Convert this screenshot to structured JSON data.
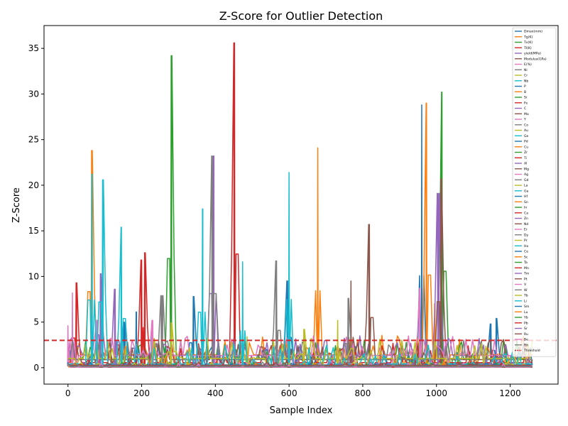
{
  "chart_data": {
    "type": "line",
    "title": "Z-Score for Outlier Detection",
    "xlabel": "Sample Index",
    "ylabel": "Z-Score",
    "xlim": [
      -65,
      1330
    ],
    "ylim": [
      -1.8,
      37.5
    ],
    "xticks": [
      0,
      200,
      400,
      600,
      800,
      1000,
      1200
    ],
    "yticks": [
      0,
      5,
      10,
      15,
      20,
      25,
      30,
      35
    ],
    "grid": false,
    "legend_position": "top-right",
    "threshold": {
      "name": "Threshold",
      "value": 3,
      "color": "#d62728"
    },
    "series": [
      {
        "name": "Dmax(mm)",
        "color": "#1f77b4",
        "peaks": [
          [
            153,
            5
          ],
          [
            185,
            6.1
          ],
          [
            228,
            4.1
          ],
          [
            340,
            7.8
          ],
          [
            596,
            9.5
          ],
          [
            960,
            28.8
          ],
          [
            1148,
            4.8
          ],
          [
            1162,
            5.4
          ]
        ]
      },
      {
        "name": "Tg(K)",
        "color": "#ff7f0e",
        "peaks": [
          [
            64,
            23.8
          ],
          [
            678,
            24.1
          ],
          [
            973,
            29.0
          ],
          [
            995,
            7.0
          ],
          [
            1060,
            2.5
          ]
        ]
      },
      {
        "name": "Tx(K)",
        "color": "#2ca02c",
        "peaks": [
          [
            280,
            34.2
          ],
          [
            1015,
            30.2
          ],
          [
            1190,
            2.0
          ]
        ]
      },
      {
        "name": "Tl(K)",
        "color": "#d62728",
        "peaks": [
          [
            22,
            9.3
          ],
          [
            200,
            11.8
          ],
          [
            208,
            12.6
          ],
          [
            452,
            35.6
          ]
        ]
      },
      {
        "name": "yield(MPa)",
        "color": "#9467bd",
        "peaks": [
          [
            88,
            10.3
          ],
          [
            128,
            8.6
          ],
          [
            395,
            23.2
          ],
          [
            1005,
            19.1
          ]
        ]
      },
      {
        "name": "Modulus(GPa)",
        "color": "#8c564b",
        "peaks": [
          [
            768,
            9.5
          ],
          [
            818,
            15.7
          ],
          [
            1012,
            20.7
          ]
        ]
      },
      {
        "name": "E(%)",
        "color": "#e377c2",
        "peaks": [
          [
            0,
            4.6
          ],
          [
            12,
            8.2
          ],
          [
            80,
            5.2
          ],
          [
            230,
            5.2
          ],
          [
            955,
            8.7
          ]
        ]
      },
      {
        "name": "Ni",
        "color": "#7f7f7f",
        "peaks": [
          [
            255,
            7.9
          ],
          [
            392,
            23.2
          ],
          [
            566,
            11.7
          ],
          [
            760,
            7.6
          ]
        ]
      },
      {
        "name": "Cr",
        "color": "#bcbd22",
        "peaks": [
          [
            280,
            4.9
          ],
          [
            486,
            3.4
          ],
          [
            640,
            4.2
          ],
          [
            732,
            5.2
          ]
        ]
      },
      {
        "name": "Nb",
        "color": "#17becf",
        "peaks": [
          [
            65,
            21.2
          ],
          [
            94,
            20.6
          ],
          [
            145,
            15.4
          ],
          [
            365,
            17.4
          ],
          [
            474,
            11.6
          ],
          [
            600,
            21.4
          ]
        ]
      },
      {
        "name": "P",
        "color": "#1f77b4",
        "peaks": [
          [
            0,
            0.2
          ]
        ]
      },
      {
        "name": "B",
        "color": "#ff7f0e",
        "peaks": [
          [
            0,
            0.2
          ]
        ]
      },
      {
        "name": "Si",
        "color": "#2ca02c",
        "peaks": [
          [
            0,
            0.2
          ]
        ]
      },
      {
        "name": "Fe",
        "color": "#d62728",
        "peaks": [
          [
            0,
            0.2
          ]
        ]
      },
      {
        "name": "C",
        "color": "#9467bd",
        "peaks": [
          [
            0,
            0.2
          ]
        ]
      },
      {
        "name": "Mo",
        "color": "#8c564b",
        "peaks": [
          [
            0,
            0.2
          ]
        ]
      },
      {
        "name": "Y",
        "color": "#e377c2",
        "peaks": [
          [
            0,
            0.2
          ]
        ]
      },
      {
        "name": "Co",
        "color": "#7f7f7f",
        "peaks": [
          [
            0,
            0.2
          ]
        ]
      },
      {
        "name": "Au",
        "color": "#bcbd22",
        "peaks": [
          [
            0,
            0.2
          ]
        ]
      },
      {
        "name": "Ge",
        "color": "#17becf",
        "peaks": [
          [
            0,
            0.2
          ]
        ]
      },
      {
        "name": "Pd",
        "color": "#1f77b4",
        "peaks": [
          [
            0,
            0.2
          ]
        ]
      },
      {
        "name": "Cu",
        "color": "#ff7f0e",
        "peaks": [
          [
            0,
            0.2
          ]
        ]
      },
      {
        "name": "Zr",
        "color": "#2ca02c",
        "peaks": [
          [
            0,
            0.2
          ]
        ]
      },
      {
        "name": "Ti",
        "color": "#d62728",
        "peaks": [
          [
            0,
            0.2
          ]
        ]
      },
      {
        "name": "Al",
        "color": "#9467bd",
        "peaks": [
          [
            0,
            0.2
          ]
        ]
      },
      {
        "name": "Mg",
        "color": "#8c564b",
        "peaks": [
          [
            0,
            0.2
          ]
        ]
      },
      {
        "name": "Ag",
        "color": "#e377c2",
        "peaks": [
          [
            0,
            0.2
          ]
        ]
      },
      {
        "name": "Gd",
        "color": "#7f7f7f",
        "peaks": [
          [
            0,
            0.2
          ]
        ]
      },
      {
        "name": "La",
        "color": "#bcbd22",
        "peaks": [
          [
            0,
            0.2
          ]
        ]
      },
      {
        "name": "Ga",
        "color": "#17becf",
        "peaks": [
          [
            0,
            0.2
          ]
        ]
      },
      {
        "name": "Hf",
        "color": "#1f77b4",
        "peaks": [
          [
            0,
            0.2
          ]
        ]
      },
      {
        "name": "Sn",
        "color": "#ff7f0e",
        "peaks": [
          [
            0,
            0.2
          ]
        ]
      },
      {
        "name": "In",
        "color": "#2ca02c",
        "peaks": [
          [
            0,
            0.2
          ]
        ]
      },
      {
        "name": "Ca",
        "color": "#d62728",
        "peaks": [
          [
            0,
            0.2
          ]
        ]
      },
      {
        "name": "Zn",
        "color": "#9467bd",
        "peaks": [
          [
            0,
            0.2
          ]
        ]
      },
      {
        "name": "Nd",
        "color": "#8c564b",
        "peaks": [
          [
            0,
            0.2
          ]
        ]
      },
      {
        "name": "Er",
        "color": "#e377c2",
        "peaks": [
          [
            0,
            0.2
          ]
        ]
      },
      {
        "name": "Dy",
        "color": "#7f7f7f",
        "peaks": [
          [
            0,
            0.2
          ]
        ]
      },
      {
        "name": "Pr",
        "color": "#bcbd22",
        "peaks": [
          [
            0,
            0.2
          ]
        ]
      },
      {
        "name": "Ho",
        "color": "#17becf",
        "peaks": [
          [
            0,
            0.2
          ]
        ]
      },
      {
        "name": "Ce",
        "color": "#1f77b4",
        "peaks": [
          [
            0,
            0.2
          ]
        ]
      },
      {
        "name": "Sc",
        "color": "#ff7f0e",
        "peaks": [
          [
            0,
            0.2
          ]
        ]
      },
      {
        "name": "Ta",
        "color": "#2ca02c",
        "peaks": [
          [
            0,
            0.2
          ]
        ]
      },
      {
        "name": "Mn",
        "color": "#d62728",
        "peaks": [
          [
            0,
            0.2
          ]
        ]
      },
      {
        "name": "Tm",
        "color": "#9467bd",
        "peaks": [
          [
            0,
            0.2
          ]
        ]
      },
      {
        "name": "Pt",
        "color": "#8c564b",
        "peaks": [
          [
            0,
            0.2
          ]
        ]
      },
      {
        "name": "V",
        "color": "#e377c2",
        "peaks": [
          [
            0,
            0.2
          ]
        ]
      },
      {
        "name": "W",
        "color": "#7f7f7f",
        "peaks": [
          [
            0,
            0.2
          ]
        ]
      },
      {
        "name": "Tb",
        "color": "#bcbd22",
        "peaks": [
          [
            0,
            0.2
          ]
        ]
      },
      {
        "name": "Li",
        "color": "#17becf",
        "peaks": [
          [
            0,
            0.2
          ]
        ]
      },
      {
        "name": "Sm",
        "color": "#1f77b4",
        "peaks": [
          [
            0,
            0.2
          ]
        ]
      },
      {
        "name": "Lu",
        "color": "#ff7f0e",
        "peaks": [
          [
            0,
            0.2
          ]
        ]
      },
      {
        "name": "Yb",
        "color": "#2ca02c",
        "peaks": [
          [
            0,
            0.2
          ]
        ]
      },
      {
        "name": "Pb",
        "color": "#d62728",
        "peaks": [
          [
            0,
            0.2
          ]
        ]
      },
      {
        "name": "Sr",
        "color": "#9467bd",
        "peaks": [
          [
            0,
            0.2
          ]
        ]
      },
      {
        "name": "Ru",
        "color": "#8c564b",
        "peaks": [
          [
            0,
            0.2
          ]
        ]
      },
      {
        "name": "Be",
        "color": "#e377c2",
        "peaks": [
          [
            0,
            0.2
          ]
        ]
      },
      {
        "name": "Rh",
        "color": "#7f7f7f",
        "peaks": [
          [
            0,
            0.2
          ]
        ]
      }
    ]
  }
}
